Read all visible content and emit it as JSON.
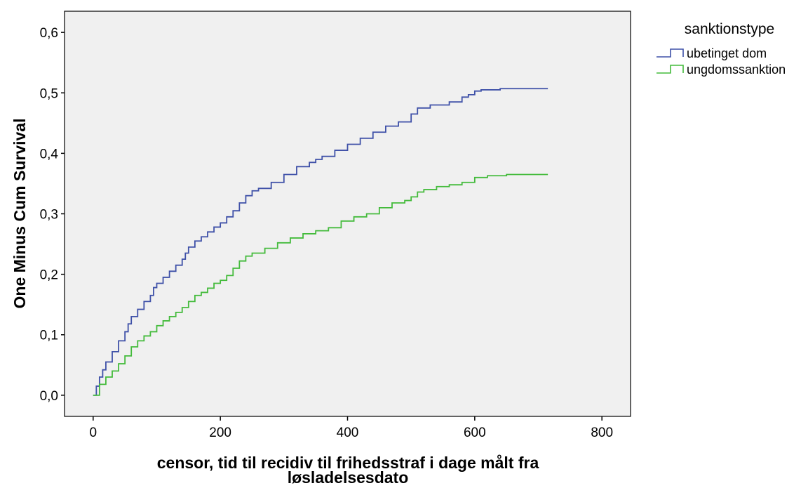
{
  "chart_data": {
    "type": "line",
    "step": true,
    "title": "",
    "xlabel_lines": [
      "censor, tid til recidiv til frihedsstraf i dage målt fra",
      "løsladelsesdato"
    ],
    "ylabel": "One Minus Cum Survival",
    "xlim": [
      -45,
      845
    ],
    "ylim": [
      -0.035,
      0.635
    ],
    "x_ticks": [
      0,
      200,
      400,
      600,
      800
    ],
    "x_tick_labels": [
      "0",
      "200",
      "400",
      "600",
      "800"
    ],
    "y_ticks": [
      0.0,
      0.1,
      0.2,
      0.3,
      0.4,
      0.5,
      0.6
    ],
    "y_tick_labels": [
      "0,0",
      "0,1",
      "0,2",
      "0,3",
      "0,4",
      "0,5",
      "0,6"
    ],
    "grid": false,
    "plot_background": "#f0f0f0",
    "legend": {
      "title": "sanktionstype",
      "placement": "right"
    },
    "series": [
      {
        "name": "ubetinget dom",
        "color": "#3f51a8",
        "points": [
          [
            0,
            0.0
          ],
          [
            5,
            0.015
          ],
          [
            10,
            0.03
          ],
          [
            15,
            0.042
          ],
          [
            20,
            0.055
          ],
          [
            30,
            0.072
          ],
          [
            40,
            0.09
          ],
          [
            50,
            0.105
          ],
          [
            55,
            0.118
          ],
          [
            60,
            0.13
          ],
          [
            70,
            0.142
          ],
          [
            80,
            0.155
          ],
          [
            90,
            0.165
          ],
          [
            95,
            0.178
          ],
          [
            100,
            0.185
          ],
          [
            110,
            0.195
          ],
          [
            120,
            0.205
          ],
          [
            130,
            0.215
          ],
          [
            140,
            0.225
          ],
          [
            145,
            0.235
          ],
          [
            150,
            0.245
          ],
          [
            160,
            0.255
          ],
          [
            170,
            0.262
          ],
          [
            180,
            0.27
          ],
          [
            190,
            0.278
          ],
          [
            200,
            0.285
          ],
          [
            210,
            0.295
          ],
          [
            220,
            0.305
          ],
          [
            230,
            0.318
          ],
          [
            240,
            0.33
          ],
          [
            250,
            0.338
          ],
          [
            260,
            0.342
          ],
          [
            280,
            0.352
          ],
          [
            300,
            0.365
          ],
          [
            320,
            0.378
          ],
          [
            340,
            0.385
          ],
          [
            350,
            0.39
          ],
          [
            360,
            0.395
          ],
          [
            380,
            0.405
          ],
          [
            400,
            0.415
          ],
          [
            420,
            0.425
          ],
          [
            440,
            0.435
          ],
          [
            460,
            0.445
          ],
          [
            480,
            0.452
          ],
          [
            500,
            0.465
          ],
          [
            510,
            0.475
          ],
          [
            530,
            0.48
          ],
          [
            560,
            0.485
          ],
          [
            580,
            0.493
          ],
          [
            590,
            0.497
          ],
          [
            600,
            0.503
          ],
          [
            610,
            0.505
          ],
          [
            640,
            0.507
          ],
          [
            715,
            0.507
          ]
        ]
      },
      {
        "name": "ungdomssanktion",
        "color": "#44bb3c",
        "points": [
          [
            0,
            0.0
          ],
          [
            10,
            0.018
          ],
          [
            20,
            0.03
          ],
          [
            30,
            0.04
          ],
          [
            40,
            0.052
          ],
          [
            50,
            0.065
          ],
          [
            60,
            0.08
          ],
          [
            70,
            0.09
          ],
          [
            80,
            0.098
          ],
          [
            90,
            0.105
          ],
          [
            100,
            0.115
          ],
          [
            110,
            0.123
          ],
          [
            120,
            0.13
          ],
          [
            130,
            0.137
          ],
          [
            140,
            0.145
          ],
          [
            150,
            0.155
          ],
          [
            160,
            0.165
          ],
          [
            170,
            0.17
          ],
          [
            180,
            0.177
          ],
          [
            190,
            0.185
          ],
          [
            200,
            0.19
          ],
          [
            210,
            0.198
          ],
          [
            220,
            0.21
          ],
          [
            230,
            0.222
          ],
          [
            240,
            0.23
          ],
          [
            250,
            0.235
          ],
          [
            270,
            0.243
          ],
          [
            290,
            0.252
          ],
          [
            310,
            0.26
          ],
          [
            330,
            0.267
          ],
          [
            350,
            0.272
          ],
          [
            370,
            0.277
          ],
          [
            390,
            0.288
          ],
          [
            410,
            0.295
          ],
          [
            430,
            0.3
          ],
          [
            450,
            0.31
          ],
          [
            470,
            0.318
          ],
          [
            490,
            0.322
          ],
          [
            500,
            0.328
          ],
          [
            510,
            0.336
          ],
          [
            520,
            0.34
          ],
          [
            540,
            0.345
          ],
          [
            560,
            0.348
          ],
          [
            580,
            0.352
          ],
          [
            600,
            0.36
          ],
          [
            620,
            0.363
          ],
          [
            650,
            0.365
          ],
          [
            715,
            0.365
          ]
        ]
      }
    ]
  }
}
